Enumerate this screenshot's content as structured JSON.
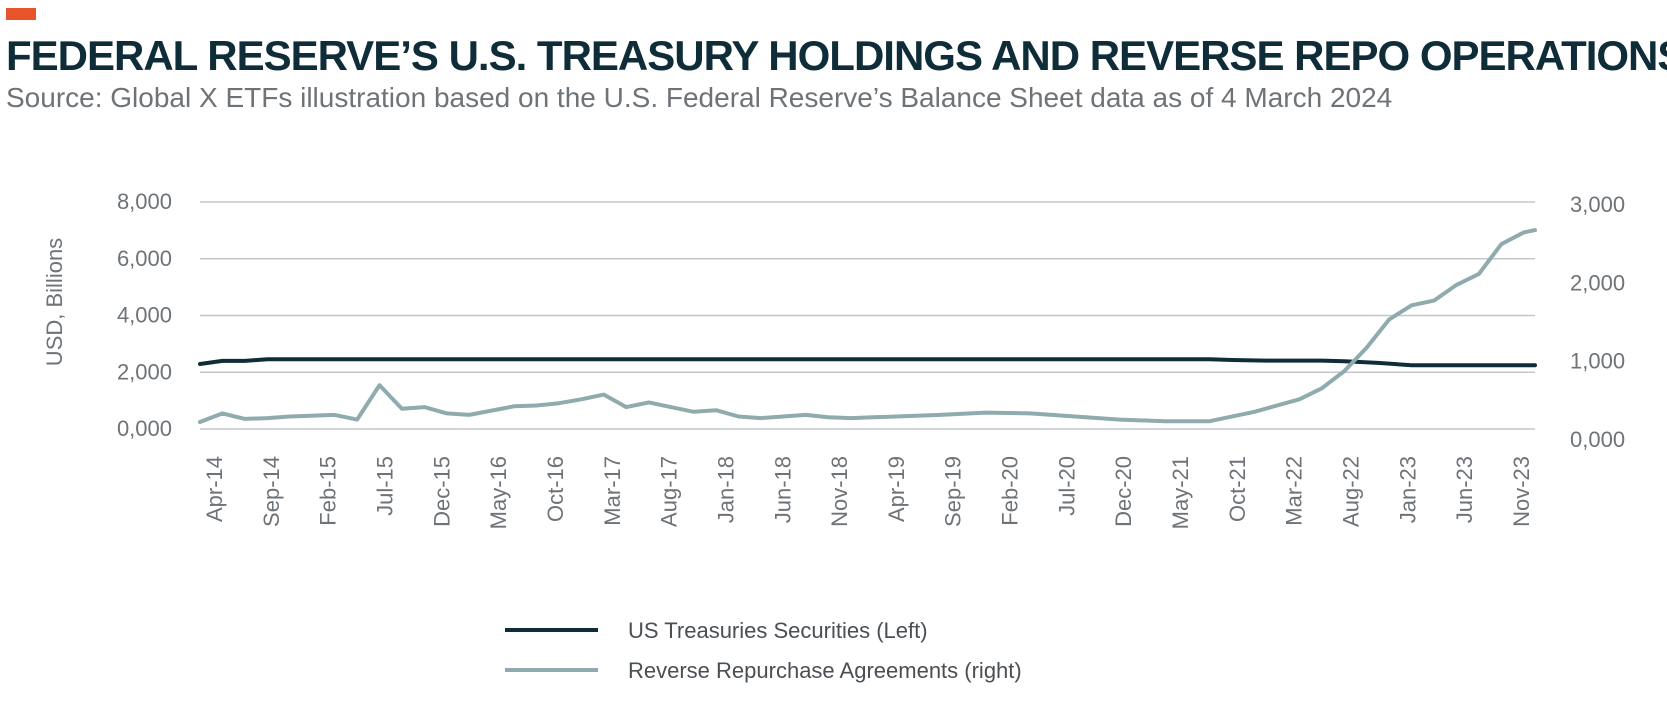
{
  "title": "FEDERAL RESERVE’S U.S. TREASURY HOLDINGS AND REVERSE REPO OPERATIONS",
  "subtitle": "Source: Global X ETFs illustration based on the U.S. Federal Reserve’s Balance Sheet data as of 4 March 2024",
  "colors": {
    "accent": "#e8542a",
    "title": "#0f2d38",
    "series_left": "#0f2d38",
    "series_right": "#8fabad",
    "grid": "#c4c7ca",
    "text": "#6e7378"
  },
  "chart_data": {
    "type": "line",
    "title": "FEDERAL RESERVE’S U.S. TREASURY HOLDINGS AND REVERSE REPO OPERATIONS",
    "ylabel": "USD, Billions",
    "ylim_left": [
      0,
      8000
    ],
    "ylim_right": [
      0,
      3000
    ],
    "y_ticks_left": [
      "8,000",
      "6,000",
      "4,000",
      "2,000",
      "0,000"
    ],
    "y_ticks_right": [
      "3,000",
      "2,000",
      "1,000",
      "0,000"
    ],
    "grid": true,
    "x_tick_labels": [
      "Apr-14",
      "Sep-14",
      "Feb-15",
      "Jul-15",
      "Dec-15",
      "May-16",
      "Oct-16",
      "Mar-17",
      "Aug-17",
      "Jan-18",
      "Jun-18",
      "Nov-18",
      "Apr-19",
      "Sep-19",
      "Feb-20",
      "Jul-20",
      "Dec-20",
      "May-21",
      "Oct-21",
      "Mar-22",
      "Aug-22",
      "Jan-23",
      "Jun-23",
      "Nov-23"
    ],
    "x_range_months": [
      0,
      119
    ],
    "legend_position": "bottom",
    "series": [
      {
        "name": "US Treasuries Securities (Left)",
        "axis": "left",
        "x": [
          0,
          2,
          4,
          6,
          8,
          12,
          20,
          30,
          40,
          50,
          60,
          70,
          80,
          85,
          90,
          92,
          95,
          100,
          102,
          105,
          108,
          110,
          112,
          115,
          118,
          119
        ],
        "values": [
          2290,
          2400,
          2400,
          2460,
          2460,
          2460,
          2460,
          2460,
          2460,
          2460,
          2460,
          2460,
          2460,
          2460,
          2460,
          2430,
          2410,
          2410,
          2390,
          2330,
          2250,
          2250,
          2250,
          2250,
          2250,
          2250
        ]
      },
      {
        "name": "Reverse Repurchase Agreements (right)",
        "axis": "right",
        "x": [
          0,
          2,
          4,
          6,
          8,
          12,
          14,
          16,
          18,
          20,
          22,
          24,
          28,
          30,
          32,
          34,
          36,
          38,
          40,
          44,
          46,
          48,
          50,
          54,
          56,
          58,
          60,
          62,
          66,
          70,
          74,
          78,
          82,
          86,
          90,
          94,
          98,
          100,
          102,
          104,
          106,
          108,
          110,
          112,
          114,
          116,
          118,
          119
        ],
        "values": [
          230,
          340,
          270,
          280,
          300,
          320,
          260,
          700,
          400,
          420,
          340,
          320,
          430,
          440,
          470,
          520,
          580,
          420,
          480,
          360,
          380,
          300,
          280,
          320,
          290,
          280,
          290,
          300,
          320,
          350,
          340,
          300,
          260,
          240,
          240,
          360,
          520,
          660,
          880,
          1180,
          1540,
          1720,
          1780,
          1980,
          2120,
          2500,
          2650,
          2680
        ]
      }
    ]
  },
  "legend": {
    "items": [
      {
        "label": "US Treasuries Securities (Left)"
      },
      {
        "label": "Reverse Repurchase Agreements (right)"
      }
    ]
  }
}
